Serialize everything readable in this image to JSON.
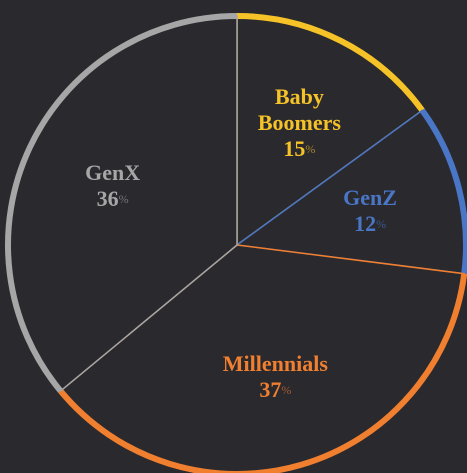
{
  "chart_data": {
    "type": "pie",
    "categories": [
      "Baby Boomers",
      "GenZ",
      "Millennials",
      "GenX"
    ],
    "values": [
      15,
      12,
      37,
      36
    ],
    "colors": [
      "#f5c228",
      "#4a76c6",
      "#f07f30",
      "#a6a6a6"
    ],
    "unit": "%"
  }
}
